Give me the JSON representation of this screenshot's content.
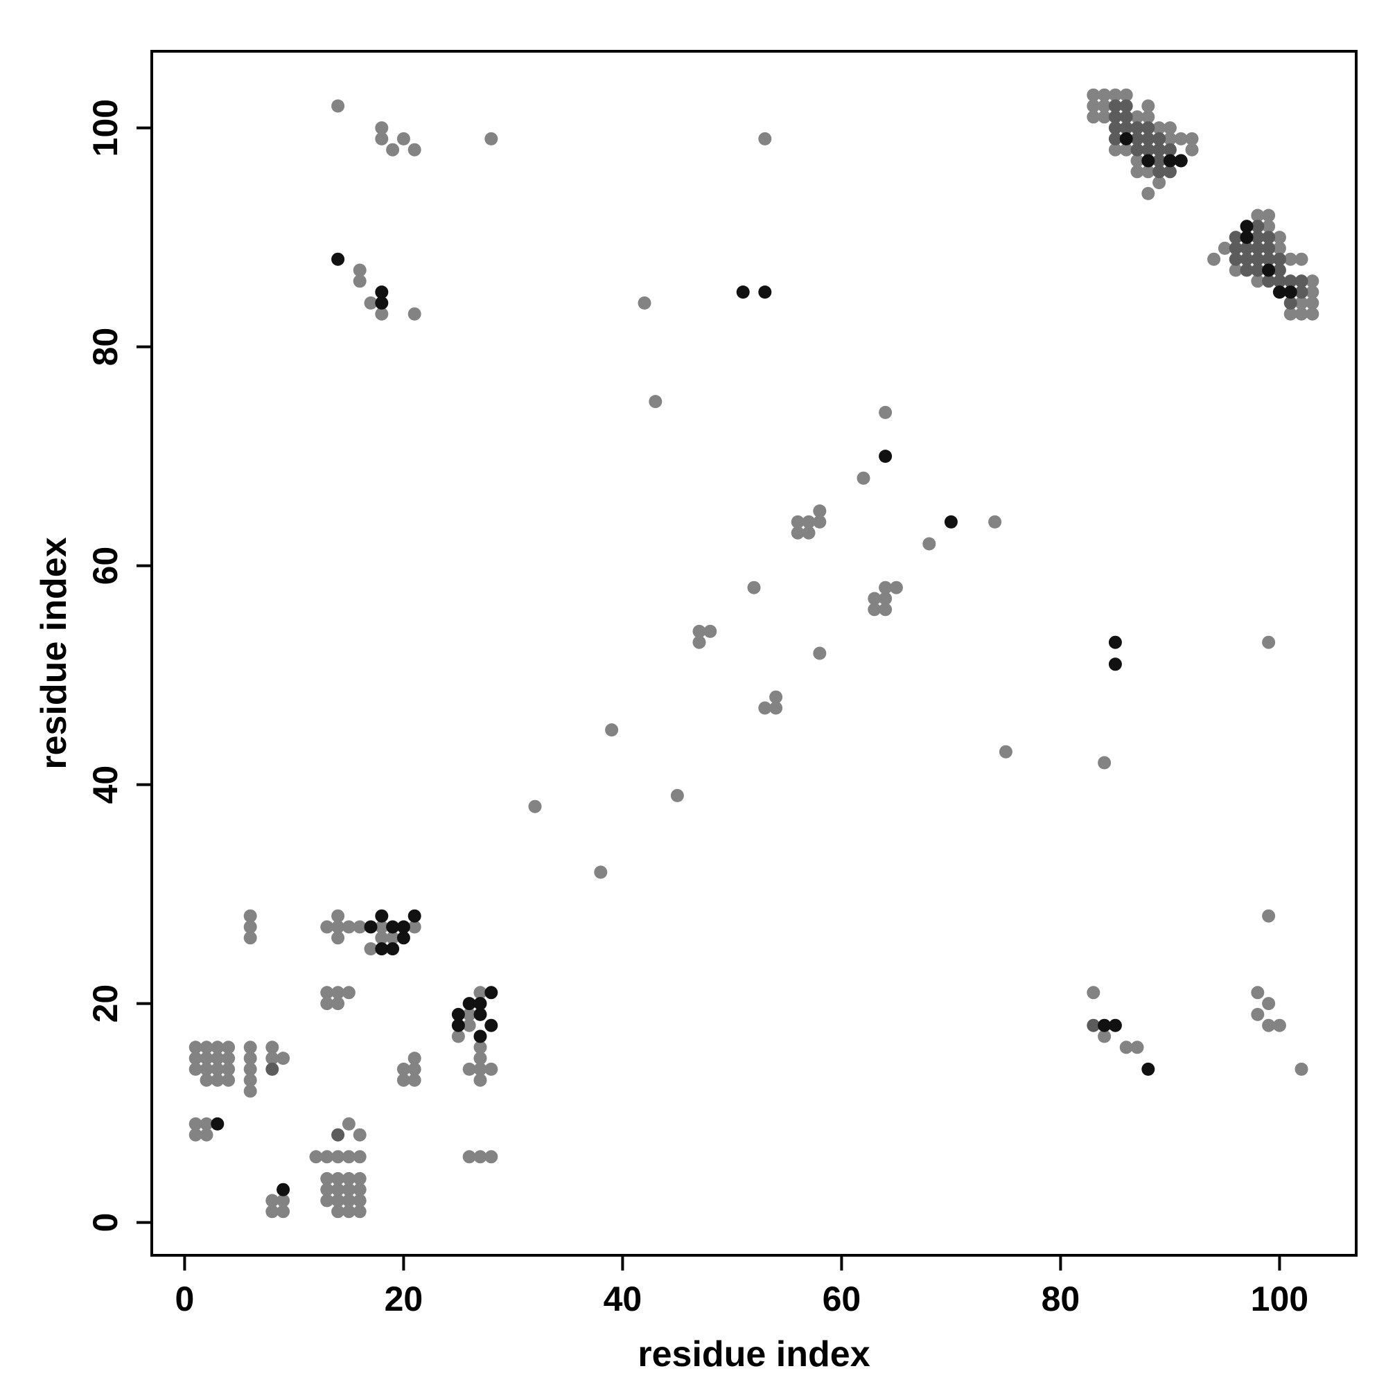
{
  "chart_data": {
    "type": "scatter",
    "title": "",
    "xlabel": "residue index",
    "ylabel": "residue index",
    "xlim": [
      -3,
      107
    ],
    "ylim": [
      -3,
      107
    ],
    "x_ticks": [
      0,
      20,
      40,
      60,
      80,
      100
    ],
    "y_ticks": [
      0,
      20,
      40,
      60,
      80,
      100
    ],
    "x_tick_labels": [
      "0",
      "20",
      "40",
      "60",
      "80",
      "100"
    ],
    "y_tick_labels": [
      "0",
      "20",
      "40",
      "60",
      "80",
      "100"
    ],
    "grid": false,
    "legend": "none",
    "colors": {
      "light": "#838383",
      "medium": "#5c5c5c",
      "dark": "#111111"
    },
    "series": [
      {
        "shade": "light",
        "points": [
          [
            14,
            102
          ],
          [
            18,
            100
          ],
          [
            18,
            99
          ],
          [
            19,
            98
          ],
          [
            20,
            99
          ],
          [
            21,
            98
          ],
          [
            28,
            99
          ],
          [
            53,
            99
          ],
          [
            16,
            87
          ],
          [
            16,
            86
          ],
          [
            17,
            84
          ],
          [
            18,
            83
          ],
          [
            21,
            83
          ],
          [
            42,
            84
          ],
          [
            43,
            75
          ],
          [
            64,
            74
          ],
          [
            62,
            68
          ],
          [
            58,
            65
          ],
          [
            56,
            64
          ],
          [
            57,
            64
          ],
          [
            58,
            64
          ],
          [
            56,
            63
          ],
          [
            57,
            63
          ],
          [
            68,
            62
          ],
          [
            74,
            64
          ],
          [
            52,
            58
          ],
          [
            64,
            58
          ],
          [
            65,
            58
          ],
          [
            63,
            57
          ],
          [
            64,
            57
          ],
          [
            63,
            56
          ],
          [
            64,
            56
          ],
          [
            47,
            54
          ],
          [
            48,
            54
          ],
          [
            47,
            53
          ],
          [
            58,
            52
          ],
          [
            54,
            48
          ],
          [
            53,
            47
          ],
          [
            54,
            47
          ],
          [
            39,
            45
          ],
          [
            75,
            43
          ],
          [
            84,
            42
          ],
          [
            45,
            39
          ],
          [
            32,
            38
          ],
          [
            38,
            32
          ],
          [
            99,
            53
          ],
          [
            99,
            28
          ],
          [
            6,
            28
          ],
          [
            6,
            27
          ],
          [
            6,
            26
          ],
          [
            14,
            28
          ],
          [
            13,
            27
          ],
          [
            14,
            27
          ],
          [
            15,
            27
          ],
          [
            16,
            27
          ],
          [
            14,
            26
          ],
          [
            17,
            25
          ],
          [
            18,
            27
          ],
          [
            18,
            26
          ],
          [
            19,
            26
          ],
          [
            21,
            27
          ],
          [
            13,
            21
          ],
          [
            14,
            21
          ],
          [
            15,
            21
          ],
          [
            13,
            20
          ],
          [
            14,
            20
          ],
          [
            27,
            21
          ],
          [
            26,
            19
          ],
          [
            26,
            18
          ],
          [
            25,
            17
          ],
          [
            27,
            16
          ],
          [
            27,
            15
          ],
          [
            26,
            14
          ],
          [
            27,
            14
          ],
          [
            28,
            14
          ],
          [
            27,
            13
          ],
          [
            83,
            21
          ],
          [
            84,
            17
          ],
          [
            86,
            16
          ],
          [
            87,
            16
          ],
          [
            98,
            21
          ],
          [
            98,
            19
          ],
          [
            99,
            20
          ],
          [
            99,
            18
          ],
          [
            100,
            18
          ],
          [
            102,
            14
          ],
          [
            1,
            16
          ],
          [
            2,
            16
          ],
          [
            3,
            16
          ],
          [
            4,
            16
          ],
          [
            1,
            15
          ],
          [
            2,
            15
          ],
          [
            3,
            15
          ],
          [
            4,
            15
          ],
          [
            1,
            14
          ],
          [
            2,
            14
          ],
          [
            3,
            14
          ],
          [
            4,
            14
          ],
          [
            2,
            13
          ],
          [
            3,
            13
          ],
          [
            4,
            13
          ],
          [
            6,
            16
          ],
          [
            6,
            15
          ],
          [
            6,
            14
          ],
          [
            6,
            13
          ],
          [
            6,
            12
          ],
          [
            8,
            16
          ],
          [
            8,
            15
          ],
          [
            9,
            15
          ],
          [
            20,
            14
          ],
          [
            21,
            15
          ],
          [
            21,
            14
          ],
          [
            20,
            13
          ],
          [
            21,
            13
          ],
          [
            1,
            9
          ],
          [
            2,
            9
          ],
          [
            1,
            8
          ],
          [
            2,
            8
          ],
          [
            15,
            9
          ],
          [
            16,
            8
          ],
          [
            12,
            6
          ],
          [
            13,
            6
          ],
          [
            14,
            6
          ],
          [
            15,
            6
          ],
          [
            16,
            6
          ],
          [
            13,
            4
          ],
          [
            14,
            4
          ],
          [
            15,
            4
          ],
          [
            16,
            4
          ],
          [
            13,
            3
          ],
          [
            14,
            3
          ],
          [
            15,
            3
          ],
          [
            16,
            3
          ],
          [
            13,
            2
          ],
          [
            14,
            2
          ],
          [
            15,
            2
          ],
          [
            16,
            2
          ],
          [
            14,
            1
          ],
          [
            15,
            1
          ],
          [
            16,
            1
          ],
          [
            8,
            2
          ],
          [
            9,
            2
          ],
          [
            8,
            1
          ],
          [
            9,
            1
          ],
          [
            26,
            6
          ],
          [
            27,
            6
          ],
          [
            28,
            6
          ],
          [
            83,
            103
          ],
          [
            84,
            103
          ],
          [
            85,
            103
          ],
          [
            86,
            103
          ],
          [
            83,
            102
          ],
          [
            84,
            102
          ],
          [
            83,
            101
          ],
          [
            84,
            101
          ],
          [
            86,
            100
          ],
          [
            87,
            101
          ],
          [
            88,
            101
          ],
          [
            88,
            102
          ],
          [
            89,
            100
          ],
          [
            90,
            100
          ],
          [
            90,
            99
          ],
          [
            91,
            99
          ],
          [
            92,
            99
          ],
          [
            92,
            98
          ],
          [
            85,
            98
          ],
          [
            86,
            98
          ],
          [
            87,
            97
          ],
          [
            87,
            96
          ],
          [
            88,
            96
          ],
          [
            89,
            95
          ],
          [
            88,
            94
          ],
          [
            98,
            92
          ],
          [
            99,
            92
          ],
          [
            99,
            91
          ],
          [
            100,
            90
          ],
          [
            100,
            89
          ],
          [
            95,
            89
          ],
          [
            94,
            88
          ],
          [
            96,
            87
          ],
          [
            98,
            86
          ],
          [
            101,
            88
          ],
          [
            102,
            88
          ],
          [
            103,
            86
          ],
          [
            103,
            85
          ],
          [
            103,
            84
          ],
          [
            103,
            83
          ],
          [
            102,
            83
          ],
          [
            101,
            83
          ],
          [
            102,
            84
          ]
        ]
      },
      {
        "shade": "medium",
        "points": [
          [
            85,
            102
          ],
          [
            86,
            102
          ],
          [
            85,
            101
          ],
          [
            86,
            101
          ],
          [
            85,
            100
          ],
          [
            86,
            100
          ],
          [
            87,
            100
          ],
          [
            85,
            99
          ],
          [
            88,
            100
          ],
          [
            87,
            99
          ],
          [
            88,
            99
          ],
          [
            89,
            99
          ],
          [
            87,
            98
          ],
          [
            88,
            98
          ],
          [
            89,
            98
          ],
          [
            90,
            98
          ],
          [
            88,
            97
          ],
          [
            89,
            97
          ],
          [
            90,
            97
          ],
          [
            91,
            97
          ],
          [
            89,
            96
          ],
          [
            90,
            96
          ],
          [
            96,
            90
          ],
          [
            97,
            90
          ],
          [
            98,
            90
          ],
          [
            99,
            90
          ],
          [
            96,
            89
          ],
          [
            97,
            89
          ],
          [
            98,
            89
          ],
          [
            99,
            89
          ],
          [
            96,
            88
          ],
          [
            97,
            88
          ],
          [
            98,
            88
          ],
          [
            99,
            88
          ],
          [
            100,
            88
          ],
          [
            97,
            87
          ],
          [
            98,
            87
          ],
          [
            99,
            87
          ],
          [
            100,
            87
          ],
          [
            99,
            86
          ],
          [
            100,
            86
          ],
          [
            101,
            86
          ],
          [
            102,
            86
          ],
          [
            100,
            85
          ],
          [
            101,
            85
          ],
          [
            102,
            85
          ],
          [
            101,
            84
          ],
          [
            8,
            14
          ],
          [
            14,
            8
          ],
          [
            83,
            18
          ],
          [
            98,
            91
          ]
        ]
      },
      {
        "shade": "dark",
        "points": [
          [
            14,
            88
          ],
          [
            18,
            85
          ],
          [
            18,
            84
          ],
          [
            51,
            85
          ],
          [
            53,
            85
          ],
          [
            64,
            70
          ],
          [
            70,
            64
          ],
          [
            85,
            53
          ],
          [
            85,
            51
          ],
          [
            18,
            28
          ],
          [
            21,
            28
          ],
          [
            17,
            27
          ],
          [
            19,
            27
          ],
          [
            20,
            27
          ],
          [
            20,
            26
          ],
          [
            18,
            25
          ],
          [
            19,
            25
          ],
          [
            26,
            20
          ],
          [
            27,
            20
          ],
          [
            28,
            21
          ],
          [
            25,
            19
          ],
          [
            27,
            19
          ],
          [
            25,
            18
          ],
          [
            28,
            18
          ],
          [
            27,
            17
          ],
          [
            84,
            18
          ],
          [
            85,
            18
          ],
          [
            88,
            14
          ],
          [
            3,
            9
          ],
          [
            9,
            3
          ],
          [
            86,
            99
          ],
          [
            88,
            97
          ],
          [
            90,
            97
          ],
          [
            91,
            97
          ],
          [
            97,
            91
          ],
          [
            97,
            90
          ],
          [
            99,
            87
          ],
          [
            100,
            85
          ],
          [
            101,
            85
          ]
        ]
      }
    ]
  }
}
